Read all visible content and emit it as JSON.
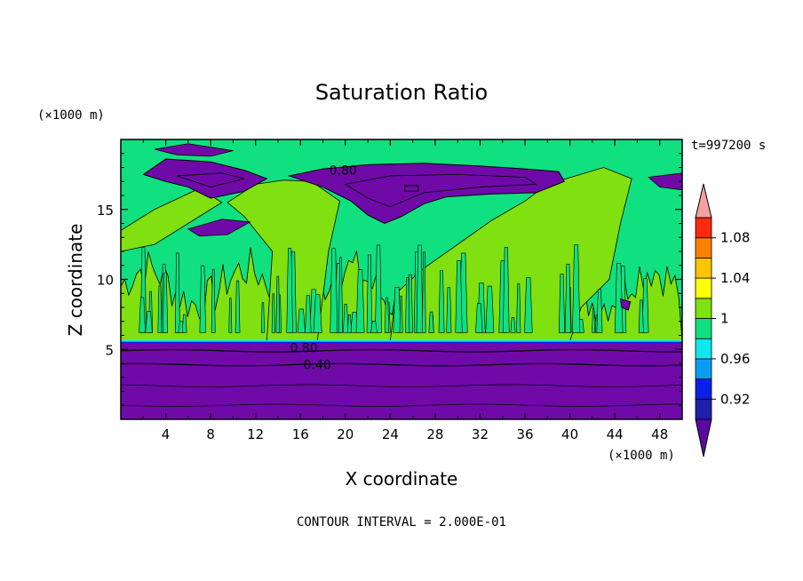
{
  "chart_data": {
    "type": "heatmap",
    "title": "Saturation Ratio",
    "xlabel": "X coordinate",
    "ylabel": "Z coordinate",
    "x_unit": "(×1000 m)",
    "y_unit": "(×1000 m)",
    "time_label": "t=997200 s",
    "footer": "CONTOUR INTERVAL = 2.000E-01",
    "xlim": [
      0,
      50
    ],
    "ylim": [
      0,
      20
    ],
    "x_ticks": [
      4,
      8,
      12,
      16,
      20,
      24,
      28,
      32,
      36,
      40,
      44,
      48
    ],
    "x_tick_labels": [
      "4",
      "8",
      "12",
      "16",
      "20",
      "24",
      "28",
      "32",
      "36",
      "40",
      "44",
      "48"
    ],
    "y_ticks": [
      5,
      10,
      15
    ],
    "y_tick_labels": [
      "5",
      "10",
      "15"
    ],
    "contour_labels": [
      {
        "text": "0.80",
        "x": 19.8,
        "z": 17.8
      },
      {
        "text": "0.80",
        "x": 16.3,
        "z": 5.1
      },
      {
        "text": "0.40",
        "x": 17.5,
        "z": 3.9
      }
    ],
    "colorbar": {
      "levels": [
        0.9,
        0.92,
        0.94,
        0.96,
        0.98,
        1.0,
        1.02,
        1.04,
        1.06,
        1.08,
        1.1
      ],
      "colors": [
        "#5a0aa0",
        "#1f1fa8",
        "#0a20e6",
        "#0a9cf5",
        "#10e8f0",
        "#10e080",
        "#80e010",
        "#ffff00",
        "#ffc400",
        "#ff8000",
        "#ff2a10",
        "#f4a0a0"
      ],
      "labels": [
        "0.92",
        "0.96",
        "1",
        "1.04",
        "1.08"
      ],
      "label_values": [
        0.92,
        0.96,
        1.0,
        1.04,
        1.08
      ]
    },
    "colors": {
      "below": "#6f0aa8",
      "near": "#10e080",
      "above": "#80e010",
      "low_band": "#0a20e6",
      "edge": "#10e8f0"
    }
  }
}
